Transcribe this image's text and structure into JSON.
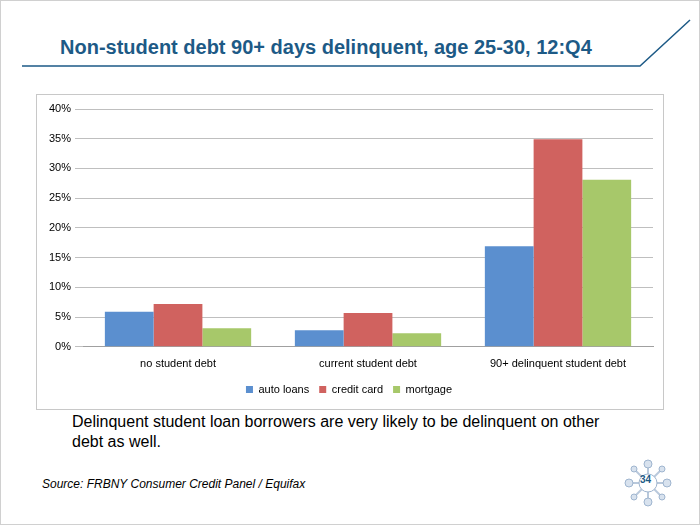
{
  "chart_data": {
    "type": "bar",
    "title": "Non-student debt 90+ days delinquent, age 25-30, 12:Q4",
    "categories": [
      "no student debt",
      "current student debt",
      "90+ delinquent student debt"
    ],
    "series": [
      {
        "name": "auto loans",
        "color": "#5b8fcf",
        "values": [
          5.9,
          2.8,
          16.9
        ]
      },
      {
        "name": "credit card",
        "color": "#d0625f",
        "values": [
          7.2,
          5.7,
          34.9
        ]
      },
      {
        "name": "mortgage",
        "color": "#a7c86a",
        "values": [
          3.1,
          2.3,
          28.1
        ]
      }
    ],
    "ylim": [
      0,
      40
    ],
    "yticks": [
      {
        "value": 0,
        "label": "0%"
      },
      {
        "value": 5,
        "label": "5%"
      },
      {
        "value": 10,
        "label": "10%"
      },
      {
        "value": 15,
        "label": "15%"
      },
      {
        "value": 20,
        "label": "20%"
      },
      {
        "value": 25,
        "label": "25%"
      },
      {
        "value": 30,
        "label": "30%"
      },
      {
        "value": 35,
        "label": "35%"
      },
      {
        "value": 40,
        "label": "40%"
      }
    ],
    "grid": true,
    "legend": "bottom",
    "caption": "Delinquent student loan borrowers are very likely to be delinquent on other debt as well.",
    "source": "Source: FRBNY Consumer Credit Panel / Equifax",
    "page": "34"
  }
}
